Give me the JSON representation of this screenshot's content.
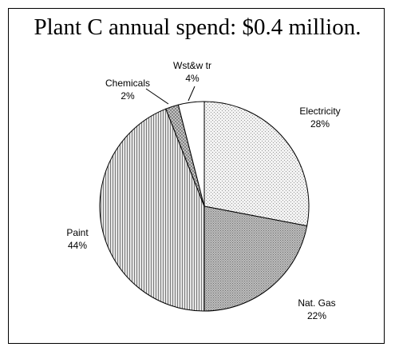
{
  "chart_data": {
    "type": "pie",
    "title": "Plant C annual spend: $0.4 million.",
    "slices": [
      {
        "label": "Electricity",
        "value": 28,
        "value_label": "28%",
        "pattern": "dots-light"
      },
      {
        "label": "Nat. Gas",
        "value": 22,
        "value_label": "22%",
        "pattern": "dots-dense"
      },
      {
        "label": "Paint",
        "value": 44,
        "value_label": "44%",
        "pattern": "vertical-lines"
      },
      {
        "label": "Chemicals",
        "value": 2,
        "value_label": "2%",
        "pattern": "crosshatch"
      },
      {
        "label": "Wst&w tr",
        "value": 4,
        "value_label": "4%",
        "pattern": "solid-white"
      }
    ],
    "start_angle_deg": 0,
    "direction": "clockwise",
    "legend": "none"
  }
}
